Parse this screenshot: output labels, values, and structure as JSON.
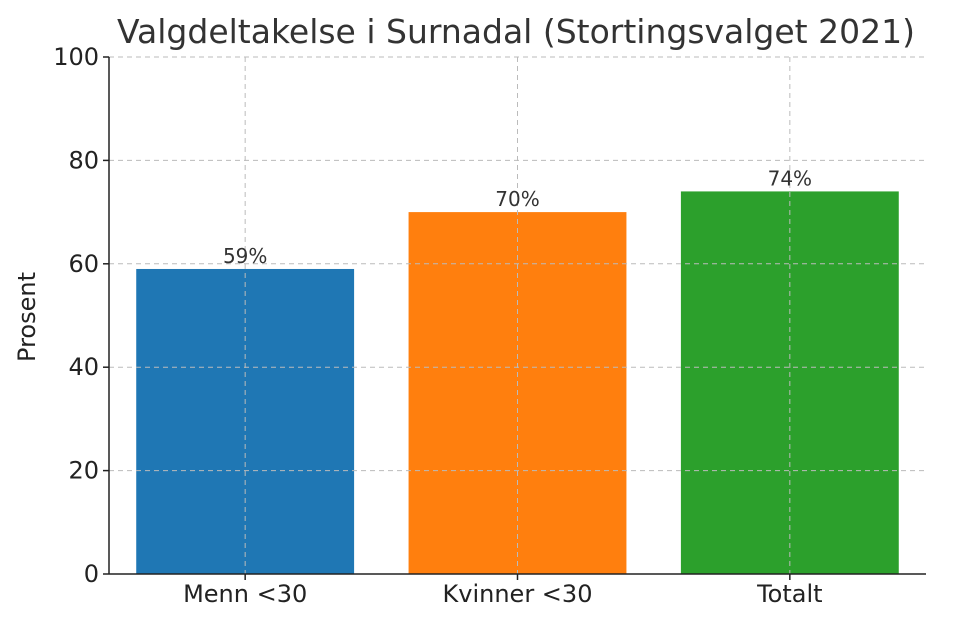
{
  "chart_data": {
    "type": "bar",
    "title": "Valgdeltakelse i Surnadal (Stortingsvalget 2021)",
    "xlabel": "",
    "ylabel": "Prosent",
    "ylim": [
      0,
      100
    ],
    "yticks": [
      0,
      20,
      40,
      60,
      80,
      100
    ],
    "grid": true,
    "categories": [
      "Menn <30",
      "Kvinner <30",
      "Totalt"
    ],
    "values": [
      59,
      70,
      74
    ],
    "data_labels": [
      "59%",
      "70%",
      "74%"
    ],
    "colors": [
      "#1f77b4",
      "#ff7f0e",
      "#2ca02c"
    ]
  }
}
